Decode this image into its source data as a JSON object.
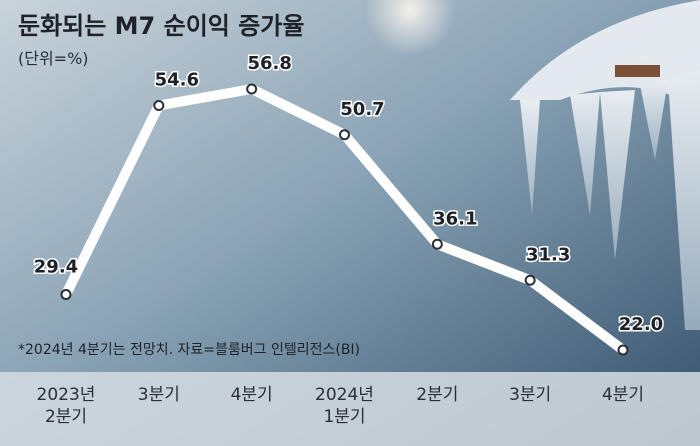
{
  "chart_data": {
    "type": "line",
    "title": "둔화되는 M7 순이익 증가율",
    "subtitle": "(단위=%)",
    "note": "*2024년 4분기는 전망치. 자료=블룸버그 인텔리전스(BI)",
    "categories": [
      "2023년\n2분기",
      "3분기",
      "4분기",
      "2024년\n1분기",
      "2분기",
      "3분기",
      "4분기"
    ],
    "values": [
      29.4,
      54.6,
      56.8,
      50.7,
      36.1,
      31.3,
      22.0
    ],
    "value_labels": [
      "29.4",
      "54.6",
      "56.8",
      "50.7",
      "36.1",
      "31.3",
      "22.0"
    ],
    "color": "#ffffff"
  }
}
